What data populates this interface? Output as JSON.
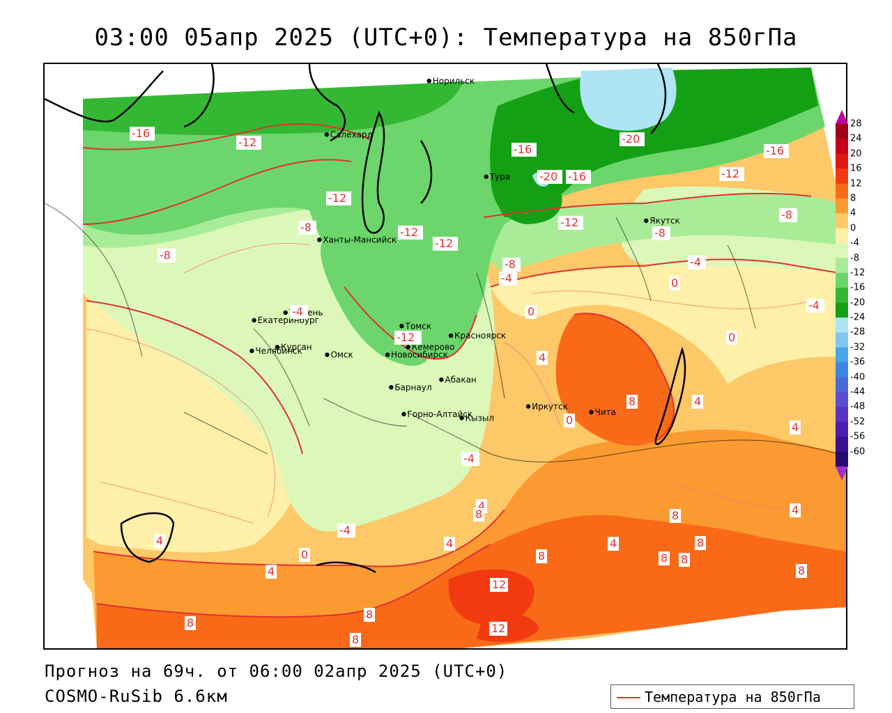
{
  "title": "03:00 05апр 2025 (UTC+0): Температура на 850гПа",
  "footer": {
    "forecast": "Прогноз на 69ч. от 06:00 02апр 2025 (UTC+0)",
    "model": "COSMO-RuSib 6.6км"
  },
  "legend": {
    "label": "Температура на 850гПа",
    "color": "#e03030"
  },
  "colorbar": {
    "labels": [
      "28",
      "24",
      "20",
      "16",
      "12",
      "8",
      "4",
      "0",
      "-4",
      "-8",
      "-12",
      "-16",
      "-20",
      "-24",
      "-28",
      "-32",
      "-36",
      "-40",
      "-44",
      "-48",
      "-52",
      "-56",
      "-60"
    ],
    "colors": [
      "#a0001a",
      "#c8001a",
      "#e01a10",
      "#f23a10",
      "#f86a18",
      "#fa9a30",
      "#fcc868",
      "#fef0a8",
      "#dcf8b8",
      "#a8ec98",
      "#6cd66c",
      "#34b834",
      "#14a014",
      "#aee4f4",
      "#7ec8f0",
      "#4aa6ec",
      "#3a86e0",
      "#4a6ad8",
      "#5a4ed0",
      "#5a34c0",
      "#4a1eb0",
      "#36108e",
      "#260a70"
    ],
    "top_arrow_color": "#c000a0",
    "bottom_arrow_color": "#a030d0"
  },
  "cities": [
    {
      "name": "Норильск",
      "lon": 88.2,
      "lat": 69.3
    },
    {
      "name": "Салехард",
      "lon": 66.6,
      "lat": 66.5
    },
    {
      "name": "Тура",
      "lon": 100.2,
      "lat": 64.3
    },
    {
      "name": "Якутск",
      "lon": 129.7,
      "lat": 62.0
    },
    {
      "name": "Ханты-Мансийск",
      "lon": 69.0,
      "lat": 61.0
    },
    {
      "name": "Екатеринбург",
      "lon": 60.6,
      "lat": 56.8
    },
    {
      "name": "Тюмень",
      "lon": 65.5,
      "lat": 57.2
    },
    {
      "name": "Челябинск",
      "lon": 61.4,
      "lat": 55.2
    },
    {
      "name": "Курган",
      "lon": 65.3,
      "lat": 55.4
    },
    {
      "name": "Омск",
      "lon": 73.4,
      "lat": 55.0
    },
    {
      "name": "Новосибирск",
      "lon": 82.9,
      "lat": 55.0
    },
    {
      "name": "Томск",
      "lon": 84.9,
      "lat": 56.5
    },
    {
      "name": "Кемерово",
      "lon": 86.1,
      "lat": 55.4
    },
    {
      "name": "Красноярск",
      "lon": 92.9,
      "lat": 56.0
    },
    {
      "name": "Абакан",
      "lon": 91.4,
      "lat": 53.7
    },
    {
      "name": "Иркутск",
      "lon": 104.3,
      "lat": 52.3
    },
    {
      "name": "Чита",
      "lon": 113.5,
      "lat": 52.0
    },
    {
      "name": "Барнаул",
      "lon": 83.8,
      "lat": 53.3
    },
    {
      "name": "Горно-Алтайск",
      "lon": 85.9,
      "lat": 51.9
    },
    {
      "name": "Кызыл",
      "lon": 94.4,
      "lat": 51.7
    }
  ],
  "isotherm_labels": [
    "-16",
    "-12",
    "-12",
    "-8",
    "-8",
    "-12",
    "-12",
    "-12",
    "-16",
    "-20",
    "-16",
    "-20",
    "-16",
    "-12",
    "-12",
    "-8",
    "-8",
    "-4",
    "-8",
    "-4",
    "-4",
    "0",
    "0",
    "-4",
    "-12",
    "4",
    "0",
    "8",
    "4",
    "0",
    "4",
    "-4",
    "4",
    "4",
    "8",
    "12",
    "12",
    "8",
    "8",
    "8",
    "8",
    "4",
    "-4",
    "0",
    "4",
    "4",
    "8",
    "8",
    "8",
    "8",
    "8",
    "4"
  ]
}
